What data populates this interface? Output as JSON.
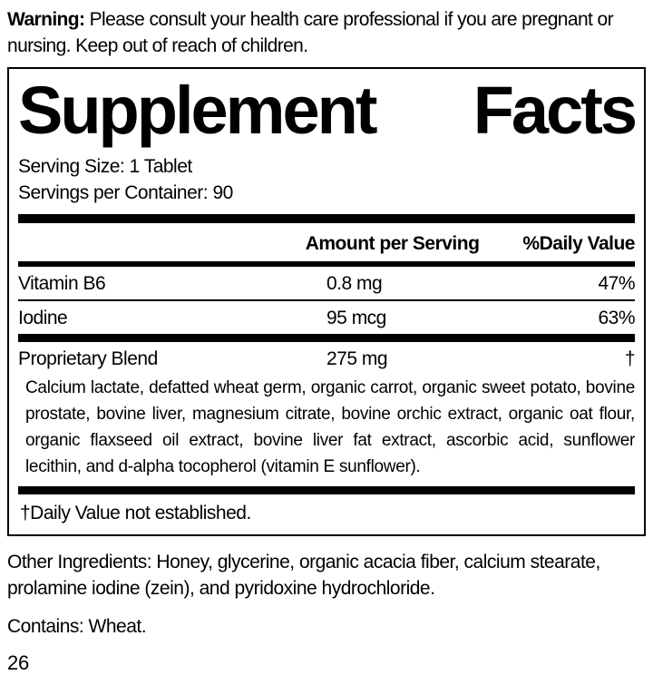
{
  "warning": {
    "label": "Warning:",
    "text": " Please consult your health care professional if you are pregnant or nursing. Keep out of reach of children."
  },
  "panel": {
    "title_word1": "Supplement",
    "title_word2": "Facts",
    "serving_size": "Serving Size: 1 Tablet",
    "servings_per_container": "Servings per Container: 90",
    "columns": {
      "amount": "Amount per Serving",
      "daily_value": "%Daily Value"
    },
    "rows": [
      {
        "name": "Vitamin B6",
        "amount": "0.8 mg",
        "dv": "47%"
      },
      {
        "name": "Iodine",
        "amount": "95 mcg",
        "dv": "63%"
      }
    ],
    "blend": {
      "name": "Proprietary Blend",
      "amount": "275 mg",
      "dv": "†",
      "description": "Calcium lactate, defatted wheat germ, organic carrot, organic sweet potato, bovine prostate, bovine liver, magnesium citrate, bovine orchic extract, organic oat flour, organic flaxseed oil extract, bovine liver fat extract, ascorbic acid, sunflower lecithin, and d-alpha tocopherol (vitamin E sunflower)."
    },
    "footnote": "†Daily Value not established."
  },
  "other_ingredients": "Other Ingredients: Honey, glycerine, organic acacia fiber, calcium stearate, prolamine iodine (zein), and pyridoxine hydrochloride.",
  "contains": "Contains: Wheat.",
  "page_number": "26",
  "colors": {
    "ink": "#000000",
    "background": "#ffffff"
  }
}
